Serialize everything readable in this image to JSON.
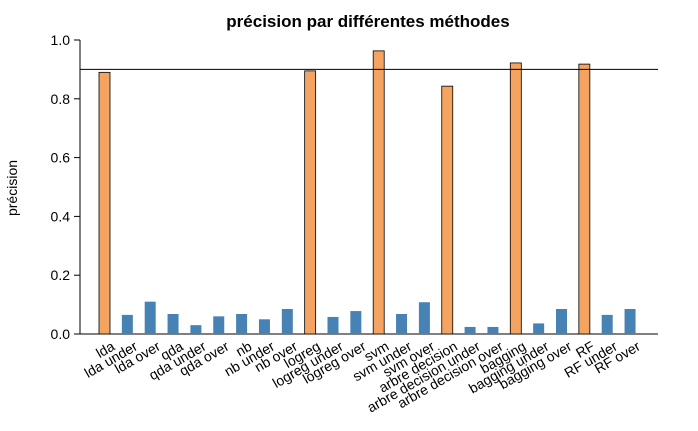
{
  "chart_data": {
    "type": "bar",
    "title": "précision par différentes méthodes",
    "xlabel": "",
    "ylabel": "précision",
    "ylim": [
      0,
      1.0
    ],
    "yticks": [
      "0.0",
      "0.2",
      "0.4",
      "0.6",
      "0.8",
      "1.0"
    ],
    "reference_line": 0.9,
    "categories": [
      "lda",
      "lda under",
      "lda over",
      "qda",
      "qda under",
      "qda over",
      "nb",
      "nb under",
      "nb over",
      "logreg",
      "logreg under",
      "logreg over",
      "svm",
      "svm under",
      "svm over",
      "arbre decision",
      "arbre decision under",
      "arbre decision over",
      "bagging",
      "bagging under",
      "bagging over",
      "RF",
      "RF under",
      "RF over"
    ],
    "values": [
      0.89,
      0.065,
      0.11,
      0.068,
      0.03,
      0.06,
      0.068,
      0.05,
      0.085,
      0.895,
      0.058,
      0.078,
      0.963,
      0.068,
      0.108,
      0.843,
      0.024,
      0.024,
      0.922,
      0.036,
      0.085,
      0.918,
      0.065,
      0.085
    ],
    "bar_colors": [
      "#F4A460",
      "#4682B4",
      "#4682B4",
      "#4682B4",
      "#4682B4",
      "#4682B4",
      "#4682B4",
      "#4682B4",
      "#4682B4",
      "#F4A460",
      "#4682B4",
      "#4682B4",
      "#F4A460",
      "#4682B4",
      "#4682B4",
      "#F4A460",
      "#4682B4",
      "#4682B4",
      "#F4A460",
      "#4682B4",
      "#4682B4",
      "#F4A460",
      "#4682B4",
      "#4682B4"
    ],
    "grid": false,
    "legend": "none"
  }
}
